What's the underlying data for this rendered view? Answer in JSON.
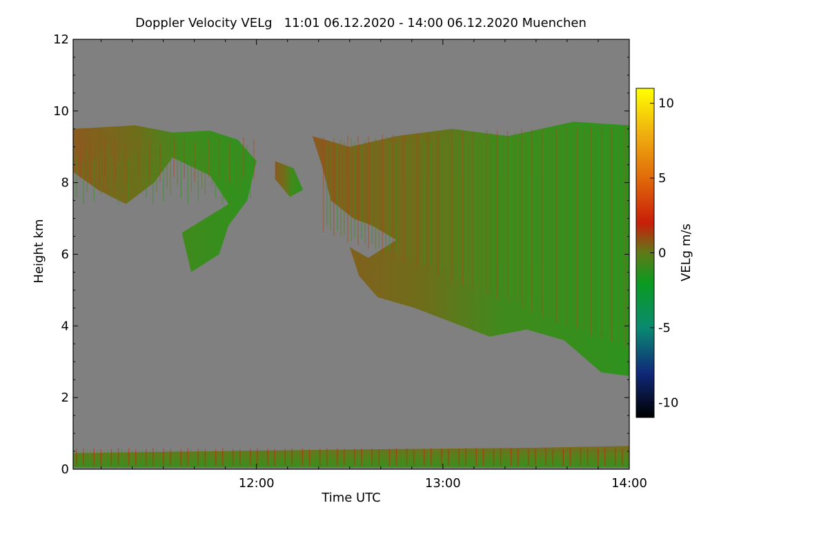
{
  "chart_data": {
    "type": "heatmap",
    "title": "Doppler Velocity VELg   11:01 06.12.2020 - 14:00 06.12.2020 Muenchen",
    "xlabel": "Time UTC",
    "ylabel": "Height km",
    "x_range_hours": [
      11.0167,
      14.0
    ],
    "x_ticks": [
      {
        "value": 12.0,
        "label": "12:00"
      },
      {
        "value": 13.0,
        "label": "13:00"
      },
      {
        "value": 14.0,
        "label": "14:00"
      }
    ],
    "ylim": [
      0,
      12
    ],
    "y_ticks": [
      {
        "value": 0,
        "label": "0"
      },
      {
        "value": 2,
        "label": "2"
      },
      {
        "value": 4,
        "label": "4"
      },
      {
        "value": 6,
        "label": "6"
      },
      {
        "value": 8,
        "label": "8"
      },
      {
        "value": 10,
        "label": "10"
      },
      {
        "value": 12,
        "label": "12"
      }
    ],
    "colorbar": {
      "label": "VELg m/s",
      "range": [
        -11,
        11
      ],
      "ticks": [
        {
          "value": 10,
          "label": "10"
        },
        {
          "value": 5,
          "label": "5"
        },
        {
          "value": 0,
          "label": "0"
        },
        {
          "value": -5,
          "label": "-5"
        },
        {
          "value": -10,
          "label": "-10"
        }
      ],
      "stops": [
        {
          "value": -11,
          "color": "#000000"
        },
        {
          "value": -8,
          "color": "#102a7a"
        },
        {
          "value": -5,
          "color": "#0a8a70"
        },
        {
          "value": -2,
          "color": "#0a9a20"
        },
        {
          "value": 0,
          "color": "#5f7a18"
        },
        {
          "value": 2,
          "color": "#c81e0a"
        },
        {
          "value": 5,
          "color": "#e06a0a"
        },
        {
          "value": 8,
          "color": "#f0b010"
        },
        {
          "value": 11,
          "color": "#ffff00"
        }
      ]
    },
    "background_color": "#808080",
    "echo_regions": [
      {
        "name": "upper-cloud-early",
        "points": [
          [
            11.0167,
            9.5
          ],
          [
            11.35,
            9.6
          ],
          [
            11.55,
            9.4
          ],
          [
            11.75,
            9.45
          ],
          [
            11.9,
            9.2
          ],
          [
            12.0,
            8.6
          ],
          [
            11.95,
            7.5
          ],
          [
            11.85,
            6.8
          ],
          [
            11.8,
            6.0
          ],
          [
            11.65,
            5.5
          ],
          [
            11.6,
            6.6
          ],
          [
            11.85,
            7.4
          ],
          [
            11.75,
            8.2
          ],
          [
            11.55,
            8.7
          ],
          [
            11.45,
            8.0
          ],
          [
            11.3,
            7.4
          ],
          [
            11.15,
            7.8
          ],
          [
            11.0167,
            8.3
          ]
        ],
        "mean_velocity": 1.0
      },
      {
        "name": "upper-cloud-mid",
        "points": [
          [
            12.1,
            8.6
          ],
          [
            12.2,
            8.4
          ],
          [
            12.25,
            7.8
          ],
          [
            12.18,
            7.6
          ],
          [
            12.1,
            8.1
          ]
        ],
        "mean_velocity": 0.8
      },
      {
        "name": "main-cloud",
        "points": [
          [
            12.3,
            9.3
          ],
          [
            12.5,
            9.0
          ],
          [
            12.75,
            9.3
          ],
          [
            13.05,
            9.5
          ],
          [
            13.35,
            9.3
          ],
          [
            13.7,
            9.7
          ],
          [
            14.0,
            9.6
          ],
          [
            14.0,
            2.6
          ],
          [
            13.85,
            2.7
          ],
          [
            13.65,
            3.6
          ],
          [
            13.45,
            3.9
          ],
          [
            13.25,
            3.7
          ],
          [
            13.05,
            4.1
          ],
          [
            12.85,
            4.5
          ],
          [
            12.65,
            4.8
          ],
          [
            12.55,
            5.4
          ],
          [
            12.5,
            6.2
          ],
          [
            12.6,
            5.9
          ],
          [
            12.75,
            6.4
          ],
          [
            12.62,
            6.8
          ],
          [
            12.52,
            7.0
          ],
          [
            12.4,
            7.5
          ],
          [
            12.35,
            8.5
          ]
        ],
        "mean_velocity": -1.5
      },
      {
        "name": "boundary-layer",
        "points": [
          [
            11.0167,
            0.45
          ],
          [
            12.5,
            0.55
          ],
          [
            13.5,
            0.6
          ],
          [
            14.0,
            0.65
          ],
          [
            14.0,
            0.05
          ],
          [
            11.0167,
            0.05
          ]
        ],
        "mean_velocity": 1.0
      }
    ]
  }
}
